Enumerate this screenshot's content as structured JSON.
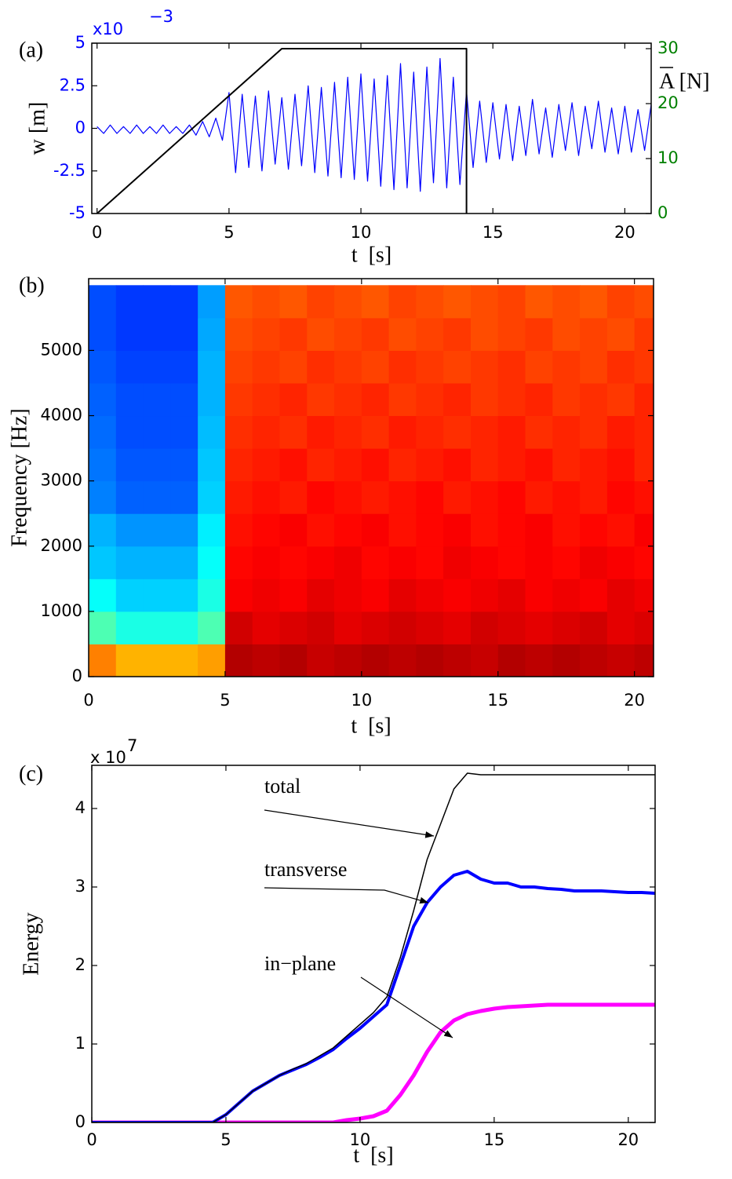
{
  "chart_data": [
    {
      "type": "line",
      "panel_label": "(a)",
      "xlabel": "t  [s]",
      "ylabel": "w [m]",
      "y2label": "A [N]",
      "multiplier": "x10",
      "multiplier_exp": "−3",
      "xlim": [
        -0.2,
        21
      ],
      "xticks": [
        0,
        5,
        10,
        15,
        20
      ],
      "ylim": [
        -5,
        5
      ],
      "yticks": [
        -5,
        -2.5,
        0,
        2.5,
        5
      ],
      "ytick_color": "#0000ff",
      "y2lim": [
        0,
        31
      ],
      "y2ticks": [
        0,
        10,
        20,
        30
      ],
      "y2tick_color": "#008000",
      "series": [
        {
          "color": "#0000ff",
          "width": 1.2,
          "x": [
            0,
            0.25,
            0.5,
            0.75,
            1,
            1.25,
            1.5,
            1.75,
            2,
            2.25,
            2.5,
            2.75,
            3,
            3.25,
            3.5,
            3.75,
            4,
            4.25,
            4.5,
            4.75,
            5,
            5.25,
            5.5,
            5.75,
            6,
            6.25,
            6.5,
            6.75,
            7,
            7.25,
            7.5,
            7.75,
            8,
            8.25,
            8.5,
            8.75,
            9,
            9.25,
            9.5,
            9.75,
            10,
            10.25,
            10.5,
            10.75,
            11,
            11.25,
            11.5,
            11.75,
            12,
            12.25,
            12.5,
            12.75,
            13,
            13.25,
            13.5,
            13.75,
            14,
            14.25,
            14.5,
            14.75,
            15,
            15.25,
            15.5,
            15.75,
            16,
            16.25,
            16.5,
            16.75,
            17,
            17.25,
            17.5,
            17.75,
            18,
            18.25,
            18.5,
            18.75,
            19,
            19.25,
            19.5,
            19.75,
            20,
            20.25,
            20.5,
            20.75,
            21
          ],
          "values": [
            0.1,
            -0.3,
            0.2,
            -0.3,
            0.1,
            -0.3,
            0.2,
            -0.3,
            0.1,
            -0.3,
            0.2,
            -0.3,
            0.1,
            -0.3,
            0.2,
            -0.4,
            0.4,
            -0.5,
            0.6,
            -0.7,
            2.1,
            -2.6,
            2.0,
            -2.3,
            1.9,
            -2.5,
            2.2,
            -2.1,
            1.8,
            -2.4,
            2.0,
            -2.2,
            2.5,
            -2.6,
            2.4,
            -2.8,
            2.7,
            -2.9,
            3.0,
            -3.0,
            3.2,
            -3.1,
            2.9,
            -3.4,
            3.1,
            -3.6,
            3.8,
            -3.5,
            3.3,
            -3.7,
            3.6,
            -3.2,
            4.1,
            -3.5,
            3.0,
            -3.3,
            2.2,
            -2.3,
            1.6,
            -2.0,
            1.5,
            -1.8,
            1.4,
            -1.9,
            1.3,
            -1.6,
            1.7,
            -1.5,
            1.2,
            -1.7,
            1.4,
            -1.3,
            1.5,
            -1.6,
            1.3,
            -1.2,
            1.6,
            -1.4,
            1.2,
            -1.5,
            1.3,
            -1.4,
            1.1,
            -1.3,
            1.4
          ]
        },
        {
          "color": "#000000",
          "width": 2,
          "axis": "y2",
          "x": [
            0,
            7,
            14,
            14
          ],
          "values": [
            0,
            30,
            30,
            0
          ]
        }
      ]
    },
    {
      "type": "heatmap",
      "panel_label": "(b)",
      "xlabel": "t  [s]",
      "ylabel": "Frequency [Hz]",
      "colormap": "jet",
      "xlim": [
        0,
        20.7
      ],
      "xticks": [
        0,
        5,
        10,
        15,
        20
      ],
      "ylim": [
        0,
        6100
      ],
      "yticks": [
        0,
        1000,
        2000,
        3000,
        4000,
        5000
      ],
      "xbins": [
        0,
        1,
        2,
        3,
        4,
        5,
        6,
        7,
        8,
        9,
        10,
        11,
        12,
        13,
        14,
        15,
        16,
        17,
        18,
        19,
        20,
        20.7
      ],
      "ybins": [
        0,
        500,
        1000,
        1500,
        2000,
        2500,
        3000,
        3500,
        4000,
        4500,
        5000,
        5500,
        6000
      ],
      "z": [
        [
          0.75,
          0.7,
          0.7,
          0.7,
          0.72,
          0.95,
          0.94,
          0.95,
          0.93,
          0.94,
          0.95,
          0.94,
          0.95,
          0.94,
          0.93,
          0.95,
          0.94,
          0.95,
          0.94,
          0.93,
          0.94
        ],
        [
          0.45,
          0.4,
          0.4,
          0.4,
          0.45,
          0.92,
          0.9,
          0.91,
          0.92,
          0.9,
          0.91,
          0.92,
          0.91,
          0.9,
          0.92,
          0.91,
          0.9,
          0.91,
          0.92,
          0.9,
          0.91
        ],
        [
          0.38,
          0.33,
          0.33,
          0.33,
          0.4,
          0.88,
          0.89,
          0.88,
          0.9,
          0.89,
          0.88,
          0.9,
          0.89,
          0.88,
          0.89,
          0.9,
          0.88,
          0.89,
          0.88,
          0.9,
          0.89
        ],
        [
          0.32,
          0.3,
          0.3,
          0.3,
          0.38,
          0.87,
          0.88,
          0.87,
          0.88,
          0.89,
          0.87,
          0.88,
          0.87,
          0.89,
          0.88,
          0.87,
          0.88,
          0.87,
          0.89,
          0.88,
          0.87
        ],
        [
          0.3,
          0.27,
          0.27,
          0.27,
          0.36,
          0.86,
          0.87,
          0.88,
          0.86,
          0.87,
          0.88,
          0.86,
          0.87,
          0.88,
          0.86,
          0.87,
          0.88,
          0.86,
          0.87,
          0.86,
          0.88
        ],
        [
          0.25,
          0.22,
          0.22,
          0.22,
          0.33,
          0.85,
          0.86,
          0.85,
          0.87,
          0.86,
          0.85,
          0.86,
          0.87,
          0.85,
          0.86,
          0.87,
          0.85,
          0.86,
          0.85,
          0.87,
          0.86
        ],
        [
          0.24,
          0.21,
          0.21,
          0.21,
          0.32,
          0.84,
          0.85,
          0.86,
          0.84,
          0.85,
          0.86,
          0.84,
          0.85,
          0.86,
          0.84,
          0.85,
          0.86,
          0.84,
          0.85,
          0.86,
          0.84
        ],
        [
          0.23,
          0.2,
          0.2,
          0.2,
          0.31,
          0.83,
          0.84,
          0.83,
          0.85,
          0.84,
          0.83,
          0.85,
          0.84,
          0.83,
          0.84,
          0.85,
          0.83,
          0.84,
          0.83,
          0.85,
          0.84
        ],
        [
          0.22,
          0.2,
          0.2,
          0.2,
          0.3,
          0.82,
          0.83,
          0.84,
          0.82,
          0.83,
          0.84,
          0.82,
          0.83,
          0.84,
          0.82,
          0.83,
          0.84,
          0.82,
          0.83,
          0.82,
          0.84
        ],
        [
          0.21,
          0.19,
          0.19,
          0.19,
          0.3,
          0.81,
          0.82,
          0.81,
          0.83,
          0.82,
          0.81,
          0.83,
          0.82,
          0.81,
          0.82,
          0.83,
          0.81,
          0.82,
          0.81,
          0.83,
          0.82
        ],
        [
          0.2,
          0.18,
          0.18,
          0.18,
          0.29,
          0.8,
          0.81,
          0.82,
          0.8,
          0.81,
          0.82,
          0.8,
          0.81,
          0.82,
          0.8,
          0.81,
          0.82,
          0.8,
          0.81,
          0.8,
          0.82
        ],
        [
          0.2,
          0.18,
          0.18,
          0.18,
          0.28,
          0.79,
          0.8,
          0.79,
          0.81,
          0.8,
          0.79,
          0.81,
          0.8,
          0.79,
          0.8,
          0.81,
          0.79,
          0.8,
          0.79,
          0.81,
          0.8
        ]
      ]
    },
    {
      "type": "line",
      "panel_label": "(c)",
      "xlabel": "t  [s]",
      "ylabel": "Energy",
      "multiplier": "x 10",
      "multiplier_exp": "7",
      "xlim": [
        0,
        21
      ],
      "xticks": [
        0,
        5,
        10,
        15,
        20
      ],
      "ylim": [
        0,
        4.55
      ],
      "yticks": [
        0,
        1,
        2,
        3,
        4
      ],
      "annotations": [
        "total",
        "transverse",
        "in−plane"
      ],
      "x": [
        0,
        0.5,
        1,
        1.5,
        2,
        2.5,
        3,
        3.5,
        4,
        4.5,
        5,
        5.5,
        6,
        6.5,
        7,
        7.5,
        8,
        8.5,
        9,
        9.5,
        10,
        10.5,
        11,
        11.5,
        12,
        12.5,
        13,
        13.5,
        14,
        14.5,
        15,
        15.5,
        16,
        16.5,
        17,
        17.5,
        18,
        18.5,
        19,
        19.5,
        20,
        20.5,
        21
      ],
      "series": [
        {
          "color": "#ff00ff",
          "width": 5,
          "values": [
            0,
            0,
            0,
            0,
            0,
            0,
            0,
            0,
            0,
            0,
            0,
            0,
            0,
            0,
            0,
            0,
            0,
            0,
            0,
            0.03,
            0.05,
            0.08,
            0.15,
            0.35,
            0.6,
            0.9,
            1.15,
            1.3,
            1.38,
            1.42,
            1.45,
            1.47,
            1.48,
            1.49,
            1.5,
            1.5,
            1.5,
            1.5,
            1.5,
            1.5,
            1.5,
            1.5,
            1.5
          ]
        },
        {
          "color": "#0000ff",
          "width": 4,
          "values": [
            0,
            0,
            0,
            0,
            0,
            0,
            0,
            0,
            0,
            0,
            0.1,
            0.25,
            0.4,
            0.5,
            0.6,
            0.67,
            0.74,
            0.83,
            0.93,
            1.07,
            1.2,
            1.35,
            1.5,
            2.0,
            2.5,
            2.8,
            3.0,
            3.15,
            3.2,
            3.1,
            3.05,
            3.05,
            3.0,
            3.0,
            2.98,
            2.97,
            2.95,
            2.95,
            2.95,
            2.94,
            2.93,
            2.93,
            2.92
          ]
        },
        {
          "color": "#000000",
          "width": 1.5,
          "values": [
            0,
            0,
            0,
            0,
            0,
            0,
            0,
            0,
            0,
            0,
            0.1,
            0.25,
            0.4,
            0.5,
            0.6,
            0.68,
            0.75,
            0.85,
            0.95,
            1.1,
            1.25,
            1.4,
            1.6,
            2.1,
            2.7,
            3.35,
            3.8,
            4.25,
            4.45,
            4.43,
            4.43,
            4.43,
            4.43,
            4.43,
            4.43,
            4.43,
            4.43,
            4.43,
            4.43,
            4.43,
            4.43,
            4.43,
            4.43
          ]
        }
      ]
    }
  ]
}
